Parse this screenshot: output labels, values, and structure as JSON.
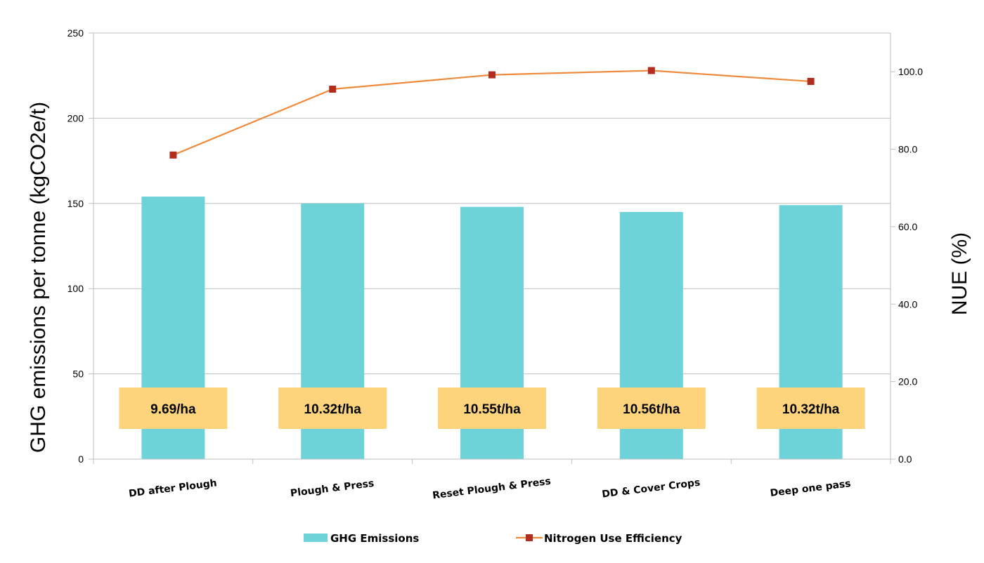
{
  "chart_data": {
    "type": "bar",
    "categories": [
      "DD after Plough",
      "Plough & Press",
      "Reset Plough & Press",
      "DD & Cover Crops",
      "Deep one pass"
    ],
    "series": [
      {
        "name": "GHG Emissions",
        "kind": "bar",
        "axis": "left",
        "color": "#6dd3d9",
        "values": [
          154,
          150,
          148,
          145,
          149
        ]
      },
      {
        "name": "Nitrogen Use Efficiency",
        "kind": "line",
        "axis": "right",
        "color": "#ed8a3c",
        "marker_color": "#b22d1e",
        "values": [
          78.5,
          95.5,
          99.2,
          100.3,
          97.5
        ]
      }
    ],
    "annotations": [
      "9.69/ha",
      "10.32t/ha",
      "10.55t/ha",
      "10.56t/ha",
      "10.32t/ha"
    ],
    "annotation_color": "#fdd47c",
    "ylabel": "GHG emissions per tonne (kgCO2e/t)",
    "y2label": "NUE (%)",
    "ylim": [
      0,
      250
    ],
    "y2lim": [
      0,
      110
    ],
    "yticks": [
      "0",
      "50",
      "100",
      "150",
      "200",
      "250"
    ],
    "y2ticks": [
      "0.0",
      "20.0",
      "40.0",
      "60.0",
      "80.0",
      "100.0"
    ],
    "grid": true,
    "legend_position": "bottom"
  }
}
